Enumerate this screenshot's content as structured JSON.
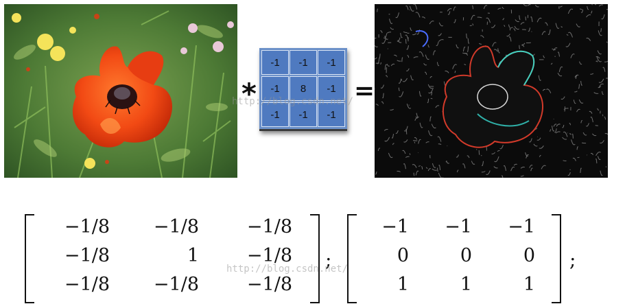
{
  "kernel": {
    "cells": [
      [
        "-1",
        "-1",
        "-1"
      ],
      [
        "-1",
        "8",
        "-1"
      ],
      [
        "-1",
        "-1",
        "-1"
      ]
    ]
  },
  "operators": {
    "convolve": "*",
    "equals": "="
  },
  "matrix1": {
    "cells": [
      [
        "−1/8",
        "−1/8",
        "−1/8"
      ],
      [
        "−1/8",
        "1",
        "−1/8"
      ],
      [
        "−1/8",
        "−1/8",
        "−1/8"
      ]
    ]
  },
  "separator": ";",
  "matrix2": {
    "cells": [
      [
        "−1",
        "−1",
        "−1"
      ],
      [
        "0",
        "0",
        "0"
      ],
      [
        "1",
        "1",
        "1"
      ]
    ]
  },
  "trailing": ";",
  "watermarks": {
    "top": "http://blog.csdn.net/",
    "bottom": "http://blog.csdn.net/"
  },
  "colors": {
    "kernel_cell": "#4f7ac0",
    "kernel_frame": "#6a8fc8"
  }
}
